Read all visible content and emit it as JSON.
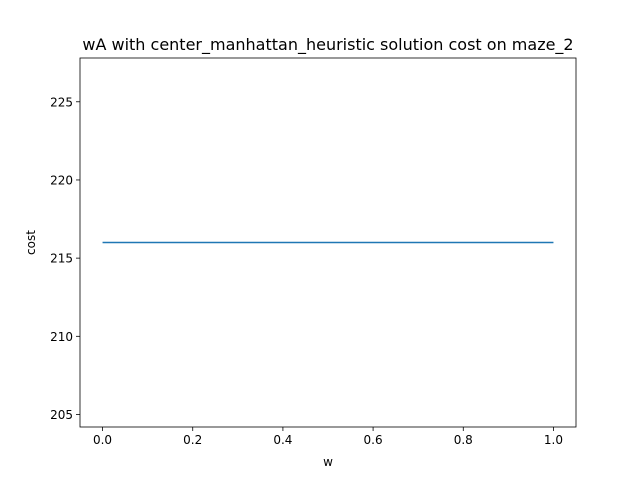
{
  "chart_data": {
    "type": "line",
    "title": "wA with center_manhattan_heuristic solution cost on maze_2",
    "xlabel": "w",
    "ylabel": "cost",
    "xlim": [
      -0.05,
      1.05
    ],
    "ylim": [
      204.2,
      227.8
    ],
    "xticks": [
      0.0,
      0.2,
      0.4,
      0.6,
      0.8,
      1.0
    ],
    "xtick_labels": [
      "0.0",
      "0.2",
      "0.4",
      "0.6",
      "0.8",
      "1.0"
    ],
    "yticks": [
      205,
      210,
      215,
      220,
      225
    ],
    "ytick_labels": [
      "205",
      "210",
      "215",
      "220",
      "225"
    ],
    "grid": false,
    "series": [
      {
        "color": "#1f77b4",
        "x": [
          0.0,
          1.0
        ],
        "y": [
          216,
          216
        ]
      }
    ]
  }
}
